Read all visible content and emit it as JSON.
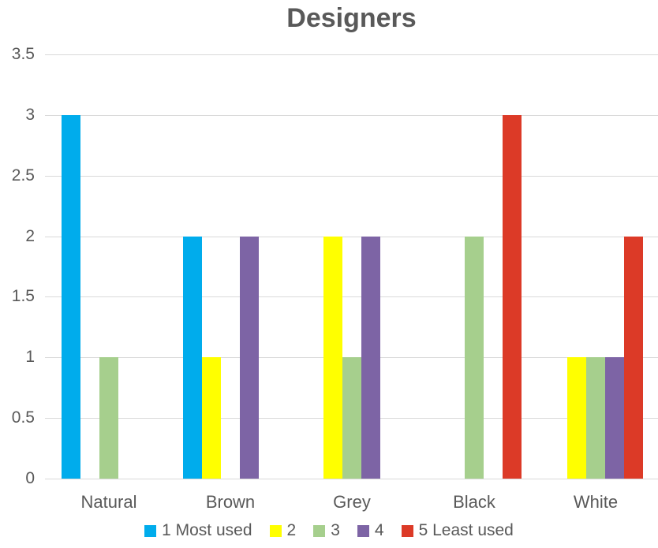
{
  "title": "Designers",
  "colors": {
    "text": "#595959",
    "grid": "#d9d9d9",
    "background": "#ffffff"
  },
  "chart_data": {
    "type": "bar",
    "title": "Designers",
    "categories": [
      "Natural",
      "Brown",
      "Grey",
      "Black",
      "White"
    ],
    "series": [
      {
        "name": "1 Most used",
        "color": "#00acec",
        "values": [
          3,
          2,
          0,
          0,
          0
        ]
      },
      {
        "name": "2",
        "color": "#ffff00",
        "values": [
          0,
          1,
          2,
          0,
          1
        ]
      },
      {
        "name": "3",
        "color": "#a6cf8d",
        "values": [
          1,
          0,
          1,
          2,
          1
        ]
      },
      {
        "name": "4",
        "color": "#7d64a5",
        "values": [
          0,
          2,
          2,
          0,
          1
        ]
      },
      {
        "name": "5 Least used",
        "color": "#dc3a27",
        "values": [
          0,
          0,
          0,
          3,
          2
        ]
      }
    ],
    "xlabel": "",
    "ylabel": "",
    "ylim": [
      0,
      3.5
    ],
    "yticks": [
      0,
      0.5,
      1,
      1.5,
      2,
      2.5,
      3,
      3.5
    ],
    "grid": true,
    "legend_position": "bottom"
  }
}
